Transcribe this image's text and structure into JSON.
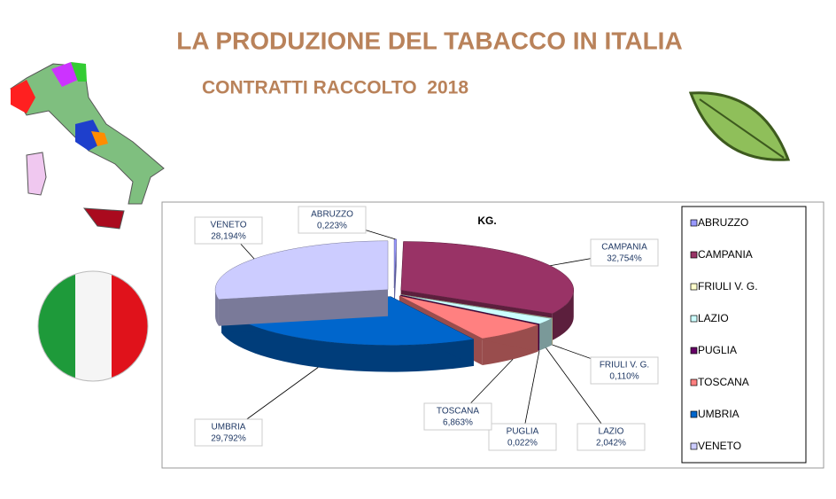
{
  "chart_data": {
    "type": "pie",
    "title": "LA PRODUZIONE DEL TABACCO IN ITALIA",
    "subtitle": "CONTRATTI RACCOLTO  2018",
    "chart_title": "KG.",
    "categories": [
      "ABRUZZO",
      "CAMPANIA",
      "FRIULI V. G.",
      "LAZIO",
      "PUGLIA",
      "TOSCANA",
      "UMBRIA",
      "VENETO"
    ],
    "values": [
      0.223,
      32.754,
      0.11,
      2.042,
      0.022,
      6.863,
      29.792,
      28.194
    ],
    "value_labels": [
      "0,223%",
      "32,754%",
      "0,110%",
      "2,042%",
      "0,022%",
      "6,863%",
      "29,792%",
      "28,194%"
    ],
    "colors": [
      "#9999ff",
      "#993366",
      "#ffffcc",
      "#ccffff",
      "#660066",
      "#ff8080",
      "#0066cc",
      "#ccccff"
    ],
    "legend": "right"
  }
}
